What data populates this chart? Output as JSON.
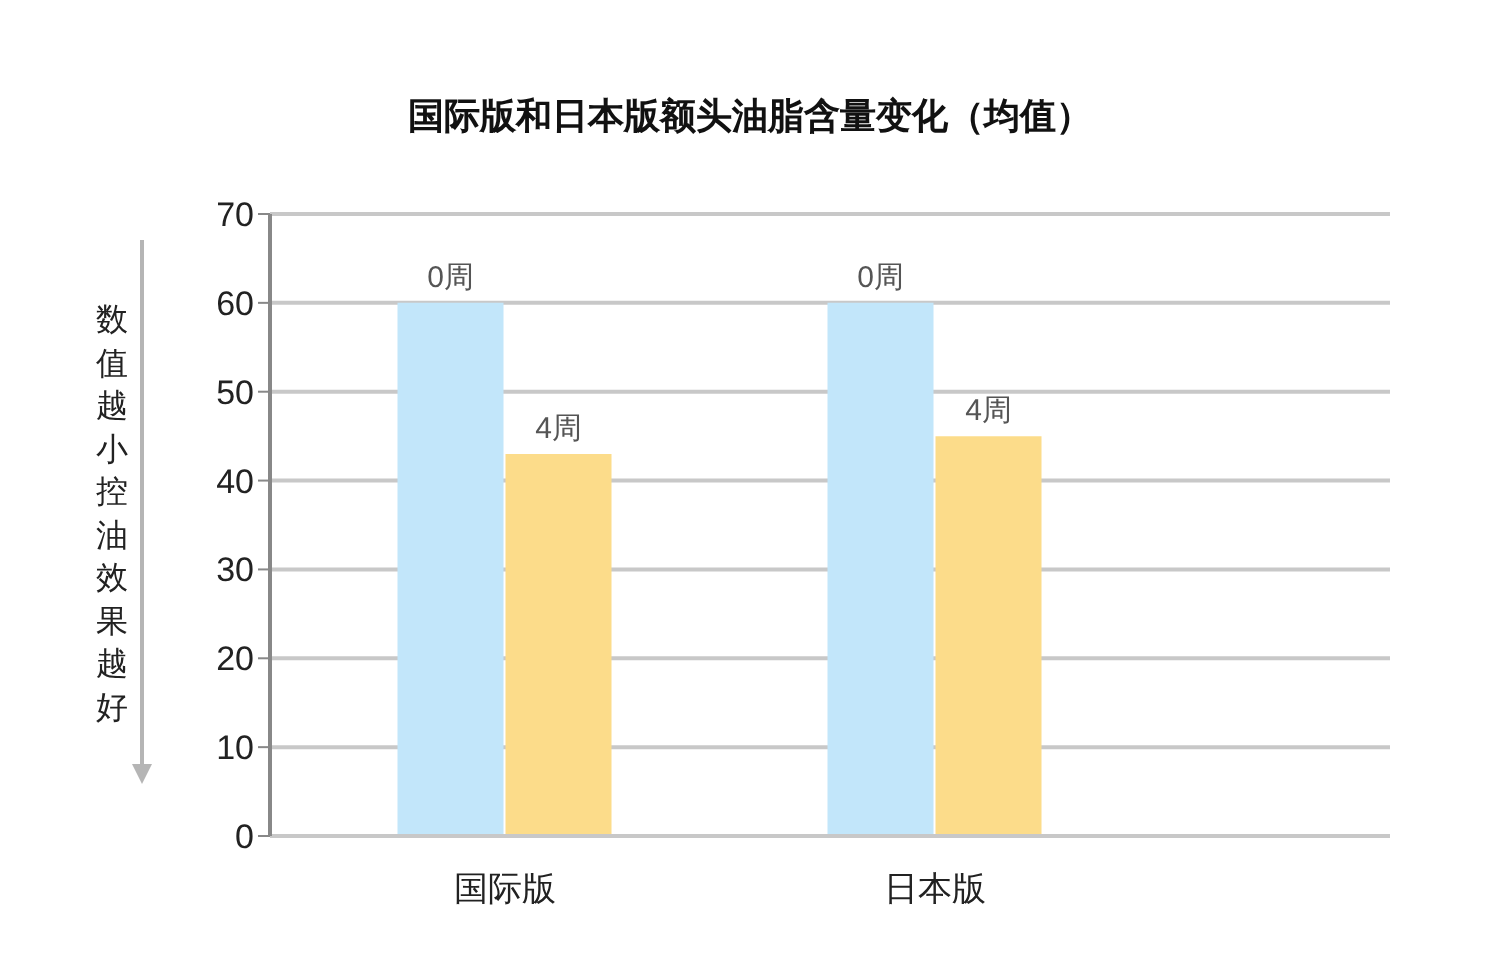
{
  "chart_data": {
    "type": "bar",
    "title": "国际版和日本版额头油脂含量变化（均值）",
    "ylabel": "数值越小控油效果越好",
    "categories": [
      "国际版",
      "日本版"
    ],
    "series": [
      {
        "name": "0周",
        "color": "#c2e6fa",
        "values": [
          60,
          60
        ]
      },
      {
        "name": "4周",
        "color": "#fcdc8a",
        "values": [
          43,
          45
        ]
      }
    ],
    "ylim": [
      0,
      70
    ],
    "yticks": [
      0,
      10,
      20,
      30,
      40,
      50,
      60,
      70
    ],
    "grid": "y",
    "legend": false
  }
}
